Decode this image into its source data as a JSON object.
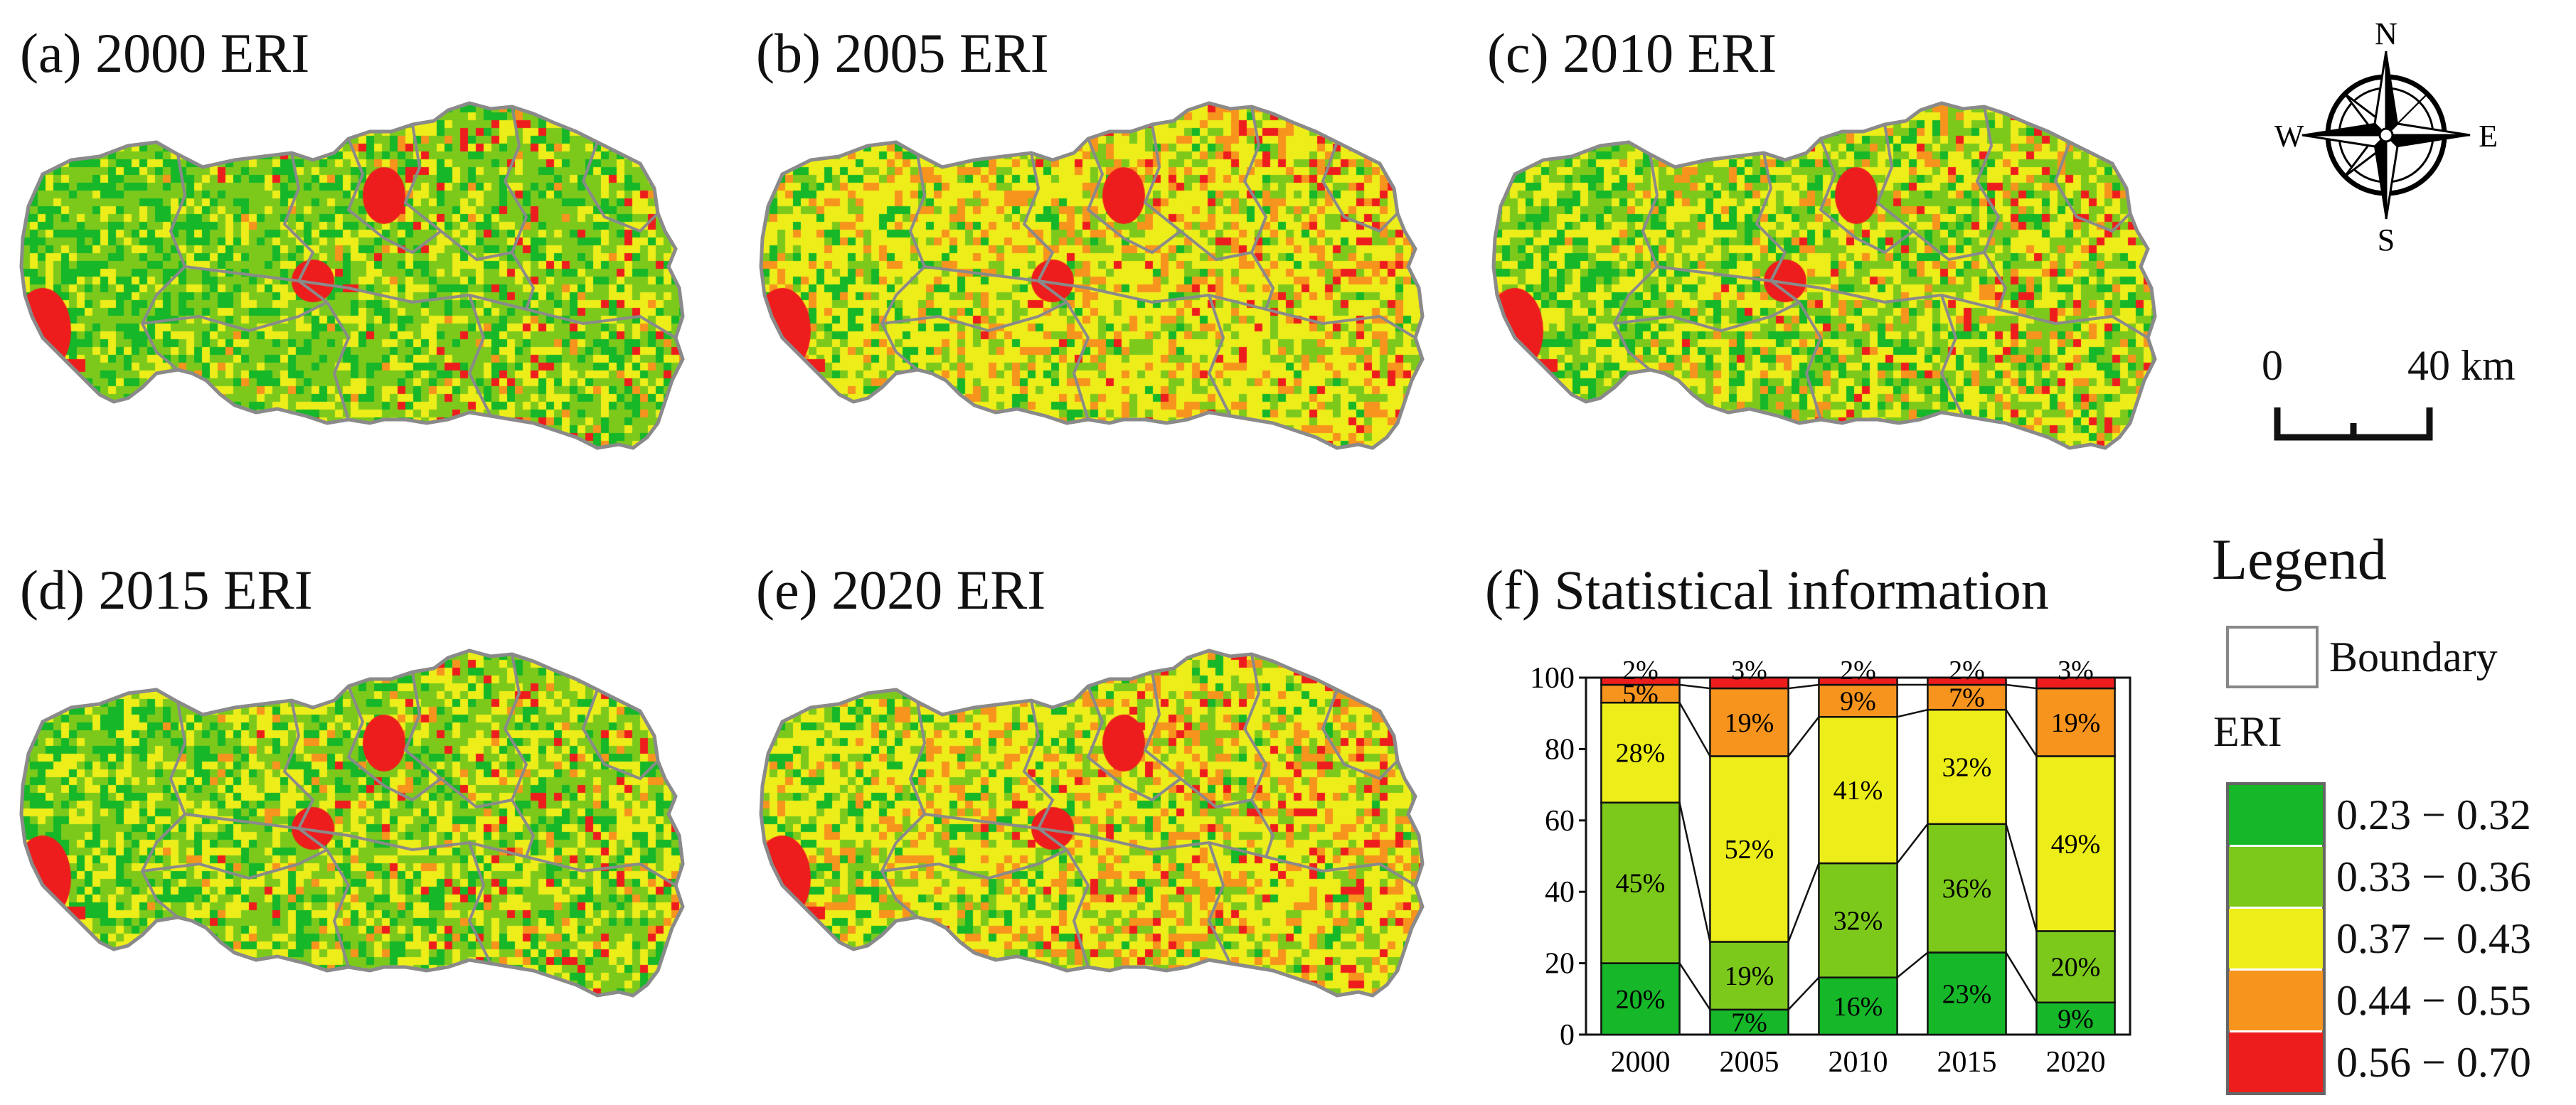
{
  "colors": {
    "c1": "#16b728",
    "c2": "#7cc91c",
    "c3": "#eded19",
    "c4": "#f7941d",
    "c5": "#ee1d1d",
    "boundary": "#8a8a8a"
  },
  "panels": [
    {
      "label": "(a) 2000 ERI"
    },
    {
      "label": "(b) 2005 ERI"
    },
    {
      "label": "(c) 2010 ERI"
    },
    {
      "label": "(d) 2015 ERI"
    },
    {
      "label": "(e) 2020 ERI"
    }
  ],
  "compass": {
    "n": "N",
    "s": "S",
    "e": "E",
    "w": "W"
  },
  "scale": {
    "start": "0",
    "end": "40 km"
  },
  "legend": {
    "title": "Legend",
    "boundary_label": "Boundary",
    "eri_label": "ERI",
    "classes": [
      {
        "label": "0.23 − 0.32",
        "color": "#16b728"
      },
      {
        "label": "0.33 − 0.36",
        "color": "#7cc91c"
      },
      {
        "label": "0.37 − 0.43",
        "color": "#eded19"
      },
      {
        "label": "0.44 − 0.55",
        "color": "#f7941d"
      },
      {
        "label": "0.56 − 0.70",
        "color": "#ee1d1d"
      }
    ]
  },
  "chart_data": {
    "type": "bar",
    "title": "(f) Statistical information",
    "categories": [
      "2000",
      "2005",
      "2010",
      "2015",
      "2020"
    ],
    "ylim": [
      0,
      100
    ],
    "yticks": [
      "0",
      "20",
      "40",
      "60",
      "80",
      "100"
    ],
    "series": [
      {
        "name": "0.23 − 0.32",
        "color": "#16b728",
        "values": [
          20,
          7,
          16,
          23,
          9
        ],
        "labels": [
          "20%",
          "7%",
          "16%",
          "23%",
          "9%"
        ]
      },
      {
        "name": "0.33 − 0.36",
        "color": "#7cc91c",
        "values": [
          45,
          19,
          32,
          36,
          20
        ],
        "labels": [
          "45%",
          "19%",
          "32%",
          "36%",
          "20%"
        ]
      },
      {
        "name": "0.37 − 0.43",
        "color": "#eded19",
        "values": [
          28,
          52,
          41,
          32,
          49
        ],
        "labels": [
          "28%",
          "52%",
          "41%",
          "32%",
          "49%"
        ]
      },
      {
        "name": "0.44 − 0.55",
        "color": "#f7941d",
        "values": [
          5,
          19,
          9,
          7,
          19
        ],
        "labels": [
          "5%",
          "19%",
          "9%",
          "7%",
          "19%"
        ]
      },
      {
        "name": "0.56 − 0.70",
        "color": "#ee1d1d",
        "values": [
          2,
          3,
          2,
          2,
          3
        ],
        "labels": [
          "2%",
          "3%",
          "2%",
          "2%",
          "3%"
        ]
      }
    ]
  }
}
